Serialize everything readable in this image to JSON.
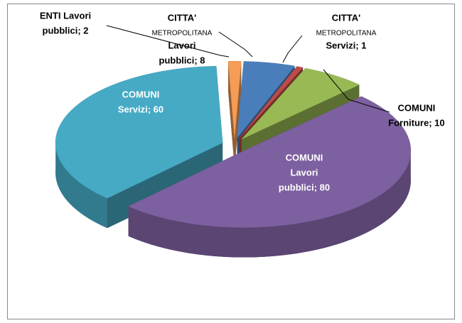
{
  "chart_data": {
    "type": "pie3d",
    "labels": [
      [
        "CITTA'",
        "METROPOLITANA",
        "Lavori",
        "pubblici; 8"
      ],
      [
        "CITTA'",
        "METROPOLITANA",
        "Servizi; 1"
      ],
      [
        "COMUNI",
        "Forniture; 10"
      ],
      [
        "COMUNI",
        "Lavori",
        "pubblici; 80"
      ],
      [
        "COMUNI",
        "Servizi; 60"
      ],
      [
        "ENTI Lavori",
        "pubblici; 2"
      ]
    ],
    "values": [
      8,
      1,
      10,
      80,
      60,
      2
    ],
    "colors": [
      "#4a7ebb",
      "#be4b48",
      "#98b954",
      "#7d60a0",
      "#46aac5",
      "#f59d56"
    ]
  }
}
